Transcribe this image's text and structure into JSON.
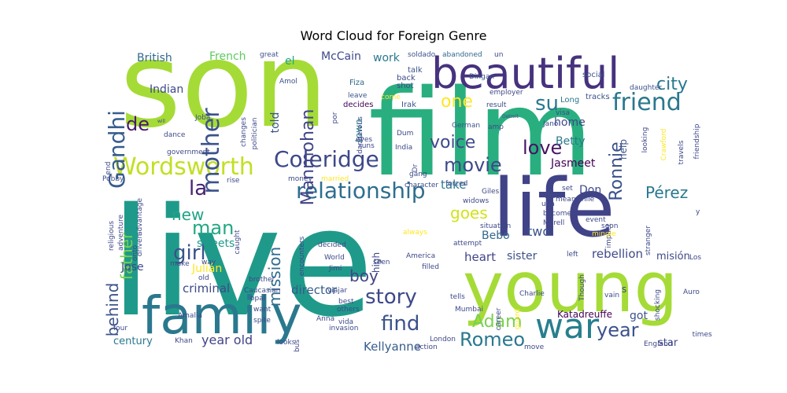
{
  "chart_data": {
    "type": "wordcloud",
    "title": "Word Cloud for Foreign Genre",
    "words": [
      {
        "text": "son",
        "weight": 100,
        "color": "#a5db36"
      },
      {
        "text": "live",
        "weight": 98,
        "color": "#1f9a8a"
      },
      {
        "text": "film",
        "weight": 92,
        "color": "#29af7f"
      },
      {
        "text": "life",
        "weight": 70,
        "color": "#404387"
      },
      {
        "text": "young",
        "weight": 66,
        "color": "#a5db36"
      },
      {
        "text": "family",
        "weight": 52,
        "color": "#2a788e"
      },
      {
        "text": "beautiful",
        "weight": 47,
        "color": "#46327e"
      },
      {
        "text": "war",
        "weight": 37,
        "color": "#277f8e"
      },
      {
        "text": "relationship",
        "weight": 30,
        "color": "#2e6e8e"
      },
      {
        "text": "Wordsworth",
        "weight": 28,
        "color": "#c2df23"
      },
      {
        "text": "friend",
        "weight": 28,
        "color": "#2a788e"
      },
      {
        "text": "mother",
        "weight": 28,
        "color": "#3b528b"
      },
      {
        "text": "Gandhi",
        "weight": 28,
        "color": "#365c8d"
      },
      {
        "text": "Coleridge",
        "weight": 26,
        "color": "#3e4989"
      },
      {
        "text": "story",
        "weight": 26,
        "color": "#3e4989"
      },
      {
        "text": "movie",
        "weight": 26,
        "color": "#3e4989"
      },
      {
        "text": "love",
        "weight": 24,
        "color": "#471365"
      },
      {
        "text": "find",
        "weight": 24,
        "color": "#3b528b"
      },
      {
        "text": "girl",
        "weight": 24,
        "color": "#3b528b"
      },
      {
        "text": "Romeo",
        "weight": 24,
        "color": "#2a788e"
      },
      {
        "text": "year",
        "weight": 24,
        "color": "#3b528b"
      },
      {
        "text": "su",
        "weight": 24,
        "color": "#2a788e"
      },
      {
        "text": "city",
        "weight": 22,
        "color": "#2a788e"
      },
      {
        "text": "la",
        "weight": 22,
        "color": "#482173"
      },
      {
        "text": "de",
        "weight": 22,
        "color": "#481a6c"
      },
      {
        "text": "voice",
        "weight": 22,
        "color": "#3e4989"
      },
      {
        "text": "one",
        "weight": 22,
        "color": "#fde725"
      },
      {
        "text": "Ronnie",
        "weight": 22,
        "color": "#3b528b"
      },
      {
        "text": "Manmohan",
        "weight": 21,
        "color": "#414487"
      },
      {
        "text": "man",
        "weight": 22,
        "color": "#22a884"
      },
      {
        "text": "Adam",
        "weight": 22,
        "color": "#7ad151"
      },
      {
        "text": "boy",
        "weight": 20,
        "color": "#414487"
      },
      {
        "text": "father",
        "weight": 19,
        "color": "#7ad151"
      },
      {
        "text": "goes",
        "weight": 19,
        "color": "#d2e21b"
      },
      {
        "text": "mission",
        "weight": 19,
        "color": "#2f6b8e"
      },
      {
        "text": "Pérez",
        "weight": 19,
        "color": "#2a788e"
      },
      {
        "text": "behind",
        "weight": 19,
        "color": "#3b528b"
      },
      {
        "text": "new",
        "weight": 19,
        "color": "#20a386"
      },
      {
        "text": "Kellyanne",
        "weight": 16,
        "color": "#365c8d"
      },
      {
        "text": "year old",
        "weight": 16,
        "color": "#404387"
      },
      {
        "text": "two",
        "weight": 16,
        "color": "#3b528b"
      },
      {
        "text": "rebellion",
        "weight": 15,
        "color": "#3e4989"
      },
      {
        "text": "criminal",
        "weight": 15,
        "color": "#3e4989"
      },
      {
        "text": "director",
        "weight": 15,
        "color": "#365c8d"
      },
      {
        "text": "heart",
        "weight": 15,
        "color": "#414487"
      },
      {
        "text": "take",
        "weight": 15,
        "color": "#2a788e"
      },
      {
        "text": "British",
        "weight": 14,
        "color": "#31688e"
      },
      {
        "text": "Indian",
        "weight": 14,
        "color": "#3e4989"
      },
      {
        "text": "French",
        "weight": 14,
        "color": "#5ec962"
      },
      {
        "text": "McCain",
        "weight": 14,
        "color": "#3e4989"
      },
      {
        "text": "work",
        "weight": 14,
        "color": "#2a788e"
      },
      {
        "text": "told",
        "weight": 14,
        "color": "#3b528b"
      },
      {
        "text": "home",
        "weight": 14,
        "color": "#3e4989"
      },
      {
        "text": "Betty",
        "weight": 14,
        "color": "#2a788e"
      },
      {
        "text": "Jasmeet",
        "weight": 14,
        "color": "#440154"
      },
      {
        "text": "Don",
        "weight": 14,
        "color": "#3e4989"
      },
      {
        "text": "streets",
        "weight": 14,
        "color": "#1f9a8a"
      },
      {
        "text": "Julián",
        "weight": 14,
        "color": "#fde725"
      },
      {
        "text": "Jose",
        "weight": 14,
        "color": "#3e4989"
      },
      {
        "text": "Bebo",
        "weight": 14,
        "color": "#31688e"
      },
      {
        "text": "sister",
        "weight": 14,
        "color": "#3b528b"
      },
      {
        "text": "century",
        "weight": 14,
        "color": "#2a788e"
      },
      {
        "text": "got",
        "weight": 14,
        "color": "#3b528b"
      },
      {
        "text": "Katadreuffe",
        "weight": 13,
        "color": "#440154"
      },
      {
        "text": "star",
        "weight": 13,
        "color": "#3e4989"
      },
      {
        "text": "misión",
        "weight": 13,
        "color": "#3e4989"
      },
      {
        "text": "help",
        "weight": 12,
        "color": "#3b528b"
      },
      {
        "text": "el",
        "weight": 13,
        "color": "#20a386"
      },
      {
        "text": "town",
        "weight": 12,
        "color": "#277f8e"
      },
      {
        "text": "high",
        "weight": 12,
        "color": "#3e4989"
      },
      {
        "text": "s",
        "weight": 12,
        "color": "#3e4989"
      },
      {
        "text": "Fiza",
        "weight": 10,
        "color": "#31688e"
      },
      {
        "text": "leave",
        "weight": 9,
        "color": "#3b528b"
      },
      {
        "text": "come",
        "weight": 9,
        "color": "#fde725"
      },
      {
        "text": "decides",
        "weight": 10,
        "color": "#440154"
      },
      {
        "text": "Irak",
        "weight": 10,
        "color": "#3b528b"
      },
      {
        "text": "shot",
        "weight": 10,
        "color": "#3e4989"
      },
      {
        "text": "back",
        "weight": 10,
        "color": "#3e4989"
      },
      {
        "text": "talk",
        "weight": 10,
        "color": "#3b528b"
      },
      {
        "text": "soldado",
        "weight": 10,
        "color": "#3b528b"
      },
      {
        "text": "abandoned",
        "weight": 10,
        "color": "#31688e"
      },
      {
        "text": "un",
        "weight": 10,
        "color": "#3e4989"
      },
      {
        "text": "employer",
        "weight": 10,
        "color": "#3e4989"
      },
      {
        "text": "social",
        "weight": 10,
        "color": "#3b528b"
      },
      {
        "text": "tracks",
        "weight": 10,
        "color": "#3b528b"
      },
      {
        "text": "daughter",
        "weight": 10,
        "color": "#3b528b"
      },
      {
        "text": "Long",
        "weight": 10,
        "color": "#2a788e"
      },
      {
        "text": "result",
        "weight": 10,
        "color": "#3e4989"
      },
      {
        "text": "visa",
        "weight": 10,
        "color": "#3e4989"
      },
      {
        "text": "Jano",
        "weight": 10,
        "color": "#3e4989"
      },
      {
        "text": "amp",
        "weight": 10,
        "color": "#3e4989"
      },
      {
        "text": "German",
        "weight": 10,
        "color": "#3b528b"
      },
      {
        "text": "Dingan",
        "weight": 10,
        "color": "#3b528b"
      },
      {
        "text": "great",
        "weight": 10,
        "color": "#3b528b"
      },
      {
        "text": "Amol",
        "weight": 10,
        "color": "#3b528b"
      },
      {
        "text": "politician",
        "weight": 10,
        "color": "#3e4989"
      },
      {
        "text": "changes",
        "weight": 9,
        "color": "#3e4989"
      },
      {
        "text": "Joba",
        "weight": 9,
        "color": "#3b528b"
      },
      {
        "text": "dance",
        "weight": 9,
        "color": "#3e4989"
      },
      {
        "text": "government",
        "weight": 9,
        "color": "#3e4989"
      },
      {
        "text": "end",
        "weight": 9,
        "color": "#3e4989"
      },
      {
        "text": "Pobby",
        "weight": 9,
        "color": "#3e4989"
      },
      {
        "text": "religious",
        "weight": 9,
        "color": "#3e4989"
      },
      {
        "text": "adventure",
        "weight": 9,
        "color": "#3e4989"
      },
      {
        "text": "driven",
        "weight": 9,
        "color": "#3e4989"
      },
      {
        "text": "advantage",
        "weight": 9,
        "color": "#3e4989"
      },
      {
        "text": "onto",
        "weight": 9,
        "color": "#3e4989"
      },
      {
        "text": "make",
        "weight": 9,
        "color": "#3e4989"
      },
      {
        "text": "way",
        "weight": 9,
        "color": "#3e4989"
      },
      {
        "text": "rise",
        "weight": 9,
        "color": "#3e4989"
      },
      {
        "text": "caught",
        "weight": 9,
        "color": "#3e4989"
      },
      {
        "text": "old",
        "weight": 9,
        "color": "#3e4989"
      },
      {
        "text": "money",
        "weight": 9,
        "color": "#3e4989"
      },
      {
        "text": "married",
        "weight": 9,
        "color": "#fde725"
      },
      {
        "text": "encounters",
        "weight": 10,
        "color": "#3e4989"
      },
      {
        "text": "decided",
        "weight": 10,
        "color": "#3e4989"
      },
      {
        "text": "World",
        "weight": 10,
        "color": "#3e4989"
      },
      {
        "text": "Jimi",
        "weight": 9,
        "color": "#3e4989"
      },
      {
        "text": "Caucasian",
        "weight": 9,
        "color": "#3e4989"
      },
      {
        "text": "opal",
        "weight": 9,
        "color": "#3e4989"
      },
      {
        "text": "brother",
        "weight": 9,
        "color": "#3e4989"
      },
      {
        "text": "want",
        "weight": 9,
        "color": "#3e4989"
      },
      {
        "text": "spite",
        "weight": 9,
        "color": "#3e4989"
      },
      {
        "text": "Amalia",
        "weight": 9,
        "color": "#3e4989"
      },
      {
        "text": "four",
        "weight": 9,
        "color": "#3e4989"
      },
      {
        "text": "Khan",
        "weight": 9,
        "color": "#3e4989"
      },
      {
        "text": "looks",
        "weight": 9,
        "color": "#3e4989"
      },
      {
        "text": "bus",
        "weight": 9,
        "color": "#3e4989"
      },
      {
        "text": "Anna",
        "weight": 9,
        "color": "#3e4989"
      },
      {
        "text": "invasion",
        "weight": 10,
        "color": "#3e4989"
      },
      {
        "text": "others",
        "weight": 9,
        "color": "#3e4989"
      },
      {
        "text": "best",
        "weight": 9,
        "color": "#3e4989"
      },
      {
        "text": "vida",
        "weight": 9,
        "color": "#3e4989"
      },
      {
        "text": "viajar",
        "weight": 9,
        "color": "#3e4989"
      },
      {
        "text": "America",
        "weight": 10,
        "color": "#3e4989"
      },
      {
        "text": "seen",
        "weight": 10,
        "color": "#3e4989"
      },
      {
        "text": "una",
        "weight": 9,
        "color": "#3e4989"
      },
      {
        "text": "widows",
        "weight": 10,
        "color": "#3e4989"
      },
      {
        "text": "Giles",
        "weight": 10,
        "color": "#3e4989"
      },
      {
        "text": "forced",
        "weight": 10,
        "color": "#3e4989"
      },
      {
        "text": "first",
        "weight": 10,
        "color": "#3e4989"
      },
      {
        "text": "set",
        "weight": 10,
        "color": "#3e4989"
      },
      {
        "text": "meanwhile",
        "weight": 10,
        "color": "#3e4989"
      },
      {
        "text": "become",
        "weight": 10,
        "color": "#3e4989"
      },
      {
        "text": "Morell",
        "weight": 10,
        "color": "#3e4989"
      },
      {
        "text": "situation",
        "weight": 10,
        "color": "#3e4989"
      },
      {
        "text": "attempt",
        "weight": 10,
        "color": "#3e4989"
      },
      {
        "text": "always",
        "weight": 10,
        "color": "#fde725"
      },
      {
        "text": "filled",
        "weight": 10,
        "color": "#3e4989"
      },
      {
        "text": "tells",
        "weight": 9,
        "color": "#3e4989"
      },
      {
        "text": "Mumbai",
        "weight": 9,
        "color": "#3e4989"
      },
      {
        "text": "London",
        "weight": 9,
        "color": "#3e4989"
      },
      {
        "text": "action",
        "weight": 9,
        "color": "#3e4989"
      },
      {
        "text": "career",
        "weight": 9,
        "color": "#3e4989"
      },
      {
        "text": "guard",
        "weight": 9,
        "color": "#fde725"
      },
      {
        "text": "Charlie",
        "weight": 10,
        "color": "#3e4989"
      },
      {
        "text": "move",
        "weight": 9,
        "color": "#3e4989"
      },
      {
        "text": "Though",
        "weight": 9,
        "color": "#3e4989"
      },
      {
        "text": "vain",
        "weight": 9,
        "color": "#3e4989"
      },
      {
        "text": "impact",
        "weight": 9,
        "color": "#3e4989"
      },
      {
        "text": "mingle",
        "weight": 10,
        "color": "#fde725"
      },
      {
        "text": "event",
        "weight": 10,
        "color": "#3e4989"
      },
      {
        "text": "soon",
        "weight": 10,
        "color": "#3e4989"
      },
      {
        "text": "left",
        "weight": 10,
        "color": "#3e4989"
      },
      {
        "text": "stranger",
        "weight": 9,
        "color": "#3e4989"
      },
      {
        "text": "shocking",
        "weight": 9,
        "color": "#3e4989"
      },
      {
        "text": "Los",
        "weight": 9,
        "color": "#3e4989"
      },
      {
        "text": "Auro",
        "weight": 9,
        "color": "#3e4989"
      },
      {
        "text": "times",
        "weight": 9,
        "color": "#3e4989"
      },
      {
        "text": "England",
        "weight": 9,
        "color": "#3e4989"
      },
      {
        "text": "y",
        "weight": 9,
        "color": "#3e4989"
      },
      {
        "text": "looking",
        "weight": 9,
        "color": "#3e4989"
      },
      {
        "text": "Crawford",
        "weight": 9,
        "color": "#fde725"
      },
      {
        "text": "travels",
        "weight": 9,
        "color": "#3e4989"
      },
      {
        "text": "friendship",
        "weight": 9,
        "color": "#3e4989"
      },
      {
        "text": "Dum",
        "weight": 9,
        "color": "#3e4989"
      },
      {
        "text": "India",
        "weight": 9,
        "color": "#3e4989"
      },
      {
        "text": "Dr",
        "weight": 9,
        "color": "#3e4989"
      },
      {
        "text": "gang",
        "weight": 9,
        "color": "#3e4989"
      },
      {
        "text": "character",
        "weight": 9,
        "color": "#3e4989"
      },
      {
        "text": "eyes",
        "weight": 9,
        "color": "#3e4989"
      },
      {
        "text": "runs",
        "weight": 9,
        "color": "#3e4989"
      },
      {
        "text": "dangerous",
        "weight": 9,
        "color": "#3e4989"
      },
      {
        "text": "por",
        "weight": 9,
        "color": "#3e4989"
      },
      {
        "text": "Detroit",
        "weight": 7,
        "color": "#3e4989"
      },
      {
        "text": "will",
        "weight": 7,
        "color": "#3e4989"
      }
    ]
  }
}
